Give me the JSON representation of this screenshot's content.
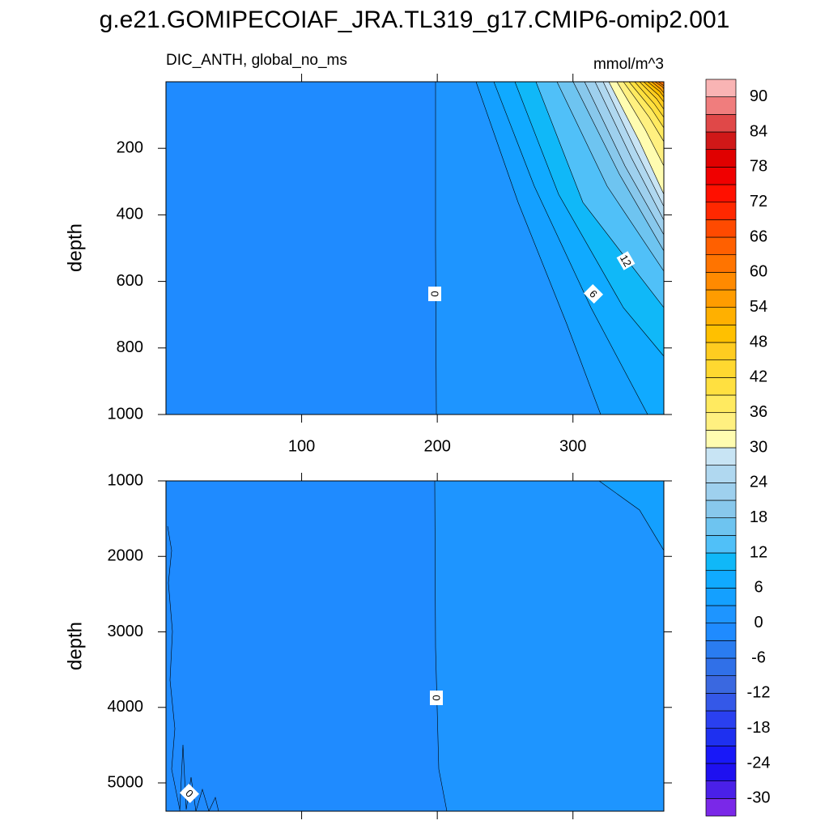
{
  "title": "g.e21.GOMIPECOIAF_JRA.TL319_g17.CMIP6-omip2.001",
  "chart_data": [
    {
      "type": "contour",
      "subtitle": "DIC_ANTH, global_no_ms",
      "units": "mmol/m^3",
      "y_label": "depth",
      "xlim": [
        0,
        367
      ],
      "ylim": [
        0,
        1000
      ],
      "xticks": [
        100,
        200,
        300
      ],
      "yticks": [
        200,
        400,
        600,
        800,
        1000
      ],
      "contour_labels": [
        0,
        6,
        12
      ]
    },
    {
      "type": "contour",
      "y_label": "depth",
      "xlim": [
        0,
        367
      ],
      "ylim": [
        1000,
        5375
      ],
      "yticks": [
        1000,
        2000,
        3000,
        4000,
        5000
      ],
      "contour_labels": [
        0,
        0
      ]
    }
  ],
  "colorbar": {
    "levels": [
      -33,
      -30,
      -27,
      -24,
      -21,
      -18,
      -15,
      -12,
      -9,
      -6,
      -3,
      0,
      3,
      6,
      9,
      12,
      15,
      18,
      21,
      24,
      27,
      30,
      33,
      36,
      39,
      42,
      45,
      48,
      51,
      54,
      57,
      60,
      63,
      66,
      69,
      72,
      75,
      78,
      81,
      84,
      87,
      90,
      93
    ],
    "colors": [
      "#7a28e8",
      "#4a20e8",
      "#1e10f0",
      "#1818f8",
      "#1e30f0",
      "#2a40f0",
      "#3458e8",
      "#3a68e0",
      "#3070e8",
      "#2a7cf0",
      "#1f8bff",
      "#1e95ff",
      "#14a0ff",
      "#10aaff",
      "#10b8f8",
      "#50c0f8",
      "#6ec4f0",
      "#88c8ec",
      "#9ed0ee",
      "#b0d8f0",
      "#c8e4f4",
      "#fffcb0",
      "#fff080",
      "#ffea60",
      "#ffe040",
      "#ffd830",
      "#ffcc20",
      "#ffc000",
      "#ffb000",
      "#ff9c00",
      "#ff8a00",
      "#ff7400",
      "#ff6000",
      "#ff4a00",
      "#ff2800",
      "#ff1000",
      "#f00000",
      "#e00000",
      "#d01818",
      "#e04848",
      "#f07d7d",
      "#f9b4b4"
    ],
    "ticks": [
      -30,
      -24,
      -18,
      -12,
      -6,
      0,
      6,
      12,
      18,
      24,
      30,
      36,
      42,
      48,
      54,
      60,
      66,
      72,
      78,
      84,
      90
    ]
  }
}
